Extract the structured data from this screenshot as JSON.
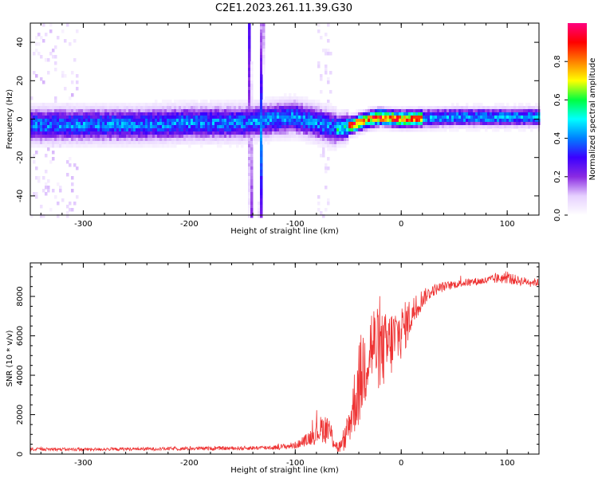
{
  "figure_title": "C2E1.2023.261.11.39.G30",
  "chart_data": [
    {
      "type": "heatmap",
      "title": "",
      "xlabel": "Height of straight line (km)",
      "ylabel": "Frequency (Hz)",
      "xlim": [
        -350,
        130
      ],
      "ylim": [
        -50,
        50
      ],
      "xticks": [
        -300,
        -200,
        -100,
        0,
        100
      ],
      "yticks": [
        -40,
        -20,
        0,
        20,
        40
      ],
      "colorbar": {
        "label": "Normalized spectral amplitude",
        "range": [
          0,
          1
        ],
        "ticks": [
          0.0,
          0.2,
          0.4,
          0.6,
          0.8
        ],
        "colormap": [
          "#ffffff",
          "#e6d0ff",
          "#8a2be2",
          "#3b00ff",
          "#0080ff",
          "#00ffff",
          "#00ff40",
          "#ffff00",
          "#ff8000",
          "#ff0000",
          "#ff0080"
        ]
      },
      "ridge": [
        {
          "x": -350,
          "f": -3
        },
        {
          "x": -300,
          "f": -3
        },
        {
          "x": -250,
          "f": -3
        },
        {
          "x": -200,
          "f": -2
        },
        {
          "x": -150,
          "f": -2
        },
        {
          "x": -120,
          "f": 0
        },
        {
          "x": -100,
          "f": 1
        },
        {
          "x": -80,
          "f": -2
        },
        {
          "x": -60,
          "f": -5
        },
        {
          "x": -45,
          "f": -3
        },
        {
          "x": -30,
          "f": 0
        },
        {
          "x": -20,
          "f": 1
        },
        {
          "x": 0,
          "f": 0
        },
        {
          "x": 50,
          "f": 1
        },
        {
          "x": 100,
          "f": 1
        },
        {
          "x": 130,
          "f": 1
        }
      ],
      "diagonal_streaks": [
        {
          "x_start": -142,
          "f_start": -50,
          "x_end": -143,
          "f_end": 50,
          "peak": 0.35
        },
        {
          "x_start": -133,
          "f_start": -50,
          "x_end": -131,
          "f_end": 50,
          "peak": 0.4
        }
      ],
      "noise_extent_x": [
        -350,
        -110
      ],
      "peak_amplitude_region_x": [
        -50,
        20
      ]
    },
    {
      "type": "line",
      "title": "",
      "xlabel": "Height of straight line (km)",
      "ylabel": "SNR (10 * v/v)",
      "xlim": [
        -350,
        130
      ],
      "ylim": [
        0,
        9700
      ],
      "xticks": [
        -300,
        -200,
        -100,
        0,
        100
      ],
      "yticks": [
        0,
        2000,
        4000,
        6000,
        8000
      ],
      "series": [
        {
          "color": "#ee3333",
          "x": [
            -350,
            -300,
            -250,
            -200,
            -150,
            -120,
            -110,
            -100,
            -95,
            -90,
            -85,
            -80,
            -75,
            -70,
            -65,
            -60,
            -55,
            -50,
            -45,
            -40,
            -35,
            -30,
            -25,
            -20,
            -15,
            -10,
            -5,
            0,
            5,
            10,
            15,
            20,
            25,
            30,
            40,
            50,
            60,
            70,
            80,
            90,
            100,
            110,
            120,
            130
          ],
          "y": [
            250,
            240,
            260,
            280,
            300,
            340,
            380,
            450,
            550,
            700,
            900,
            1100,
            1300,
            1300,
            900,
            300,
            500,
            1300,
            2500,
            3500,
            4500,
            5500,
            5500,
            5200,
            5300,
            5600,
            5900,
            6200,
            6600,
            7100,
            7500,
            7900,
            8100,
            8300,
            8500,
            8600,
            8700,
            8750,
            8800,
            8900,
            8950,
            8800,
            8750,
            8700
          ],
          "noise_amp": [
            80,
            80,
            80,
            90,
            100,
            120,
            150,
            180,
            220,
            300,
            450,
            600,
            700,
            800,
            600,
            300,
            400,
            900,
            1600,
            2200,
            2300,
            2400,
            2200,
            2000,
            1900,
            1800,
            1700,
            1400,
            1200,
            900,
            700,
            500,
            350,
            300,
            250,
            200,
            200,
            200,
            200,
            250,
            300,
            250,
            200,
            200
          ]
        }
      ]
    }
  ]
}
